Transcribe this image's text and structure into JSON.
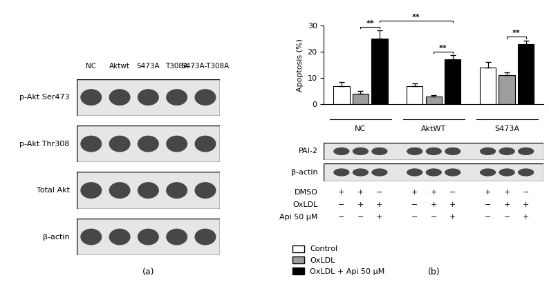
{
  "panel_labels": [
    "(a)",
    "(b)"
  ],
  "blot_a": {
    "lanes": [
      "NC",
      "Aktwt",
      "S473A",
      "T308A",
      "S473A-T308A"
    ],
    "rows": [
      "p-Akt Ser473",
      "p-Akt Thr308",
      "Total Akt",
      "β-actin"
    ]
  },
  "chart_data": {
    "type": "bar",
    "ylabel": "Apoptosis (%)",
    "categories": [
      "NC",
      "AktWT",
      "S473A"
    ],
    "ylim": [
      0,
      30
    ],
    "yticks": [
      0,
      10,
      20,
      30
    ],
    "legend": "lower left",
    "series": [
      {
        "name": "Control",
        "color": "#ffffff",
        "values": [
          7,
          7,
          14
        ],
        "errors": [
          1.5,
          1,
          2
        ]
      },
      {
        "name": "OxLDL",
        "color": "#9e9e9e",
        "values": [
          4,
          3,
          11
        ],
        "errors": [
          1,
          0.5,
          1.2
        ]
      },
      {
        "name": "OxLDL + Api 50 μM",
        "color": "#000000",
        "values": [
          25,
          17,
          23
        ],
        "errors": [
          3,
          1.6,
          1.2
        ]
      }
    ],
    "significance": [
      {
        "from": [
          0,
          1
        ],
        "to": [
          0,
          2
        ],
        "label": "**"
      },
      {
        "from": [
          0,
          2
        ],
        "to": [
          1,
          2
        ],
        "label": "**"
      },
      {
        "from": [
          1,
          1
        ],
        "to": [
          1,
          2
        ],
        "label": "**"
      },
      {
        "from": [
          2,
          1
        ],
        "to": [
          2,
          2
        ],
        "label": "**"
      }
    ]
  },
  "blot_b": {
    "rows": [
      "PAI-2",
      "β-actin"
    ]
  },
  "conditions": [
    {
      "name": "DMSO",
      "marks": [
        "+",
        "+",
        "−",
        "+",
        "+",
        "−",
        "+",
        "+",
        "−"
      ]
    },
    {
      "name": "OxLDL",
      "marks": [
        "−",
        "+",
        "+",
        "−",
        "+",
        "+",
        "−",
        "+",
        "+"
      ]
    },
    {
      "name": "Api 50 μM",
      "marks": [
        "−",
        "−",
        "+",
        "−",
        "−",
        "+",
        "−",
        "−",
        "+"
      ]
    }
  ]
}
